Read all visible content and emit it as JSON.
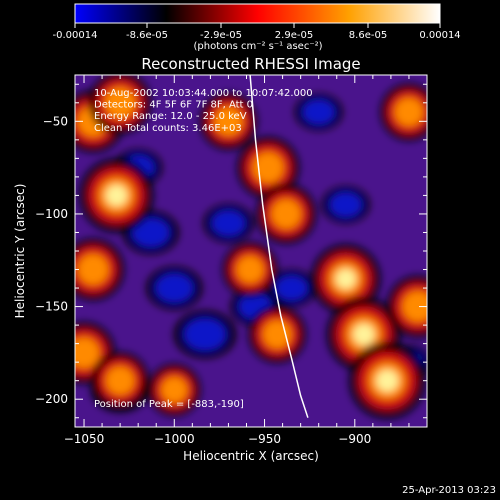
{
  "colorbar": {
    "tick_labels": [
      "-0.00014",
      "-8.6e-05",
      "-2.9e-05",
      "2.9e-05",
      "8.6e-05",
      "0.00014"
    ],
    "units_label": "(photons cm⁻² s⁻¹ asec⁻²)",
    "colors": [
      "#0000ff",
      "#000000",
      "#ff0000",
      "#ffa000",
      "#ffffff"
    ]
  },
  "chart_data": {
    "type": "heatmap",
    "title": "Reconstructed RHESSI Image",
    "xlabel": "Heliocentric X (arcsec)",
    "ylabel": "Heliocentric Y (arcsec)",
    "xlim": [
      -1055,
      -860
    ],
    "ylim": [
      -215,
      -25
    ],
    "x_ticks": [
      -1050,
      -1000,
      -950,
      -900
    ],
    "x_tick_labels": [
      "−1050",
      "−1000",
      "−950",
      "−900"
    ],
    "y_ticks": [
      -200,
      -150,
      -100,
      -50
    ],
    "y_tick_labels": [
      "−200",
      "−150",
      "−100",
      "−50"
    ],
    "colorbar_range": [
      -0.00014,
      0.00014
    ],
    "annotations": [
      "10-Aug-2002 10:03:44.000 to 10:07:42.000",
      "Detectors: 4F 5F 6F 7F 8F, Att 0",
      "Energy Range: 12.0 - 25.0 keV",
      "Clean     Total counts: 3.46E+03"
    ],
    "peak_label": "Position of Peak = [-883,-190]",
    "peak_position": [
      -883,
      -190
    ],
    "limb_curve": {
      "x": [
        -958,
        -955,
        -951,
        -946,
        -941,
        -935,
        -930,
        -926
      ],
      "y": [
        -25,
        -60,
        -95,
        -130,
        -155,
        -178,
        -198,
        -210
      ]
    },
    "hot_sources": [
      {
        "x": [
          -1045,
          -1030
        ],
        "y": [
          -50,
          -40
        ],
        "strength": 0.7
      },
      {
        "x": -1032,
        "y": -90,
        "strength": 0.95
      },
      {
        "x": -1045,
        "y": -130,
        "strength": 0.7
      },
      {
        "x": -1050,
        "y": -175,
        "strength": 0.7
      },
      {
        "x": -1030,
        "y": -190,
        "strength": 0.6
      },
      {
        "x": -970,
        "y": -50,
        "strength": 0.6
      },
      {
        "x": -948,
        "y": -75,
        "strength": 0.7
      },
      {
        "x": -938,
        "y": -100,
        "strength": 0.65
      },
      {
        "x": -958,
        "y": -130,
        "strength": 0.55
      },
      {
        "x": -943,
        "y": -165,
        "strength": 0.6
      },
      {
        "x": -905,
        "y": -135,
        "strength": 0.85
      },
      {
        "x": -895,
        "y": -165,
        "strength": 0.95
      },
      {
        "x": -882,
        "y": -190,
        "strength": 1.0
      },
      {
        "x": -865,
        "y": -150,
        "strength": 0.7
      },
      {
        "x": -870,
        "y": -45,
        "strength": 0.6
      },
      {
        "x": -1000,
        "y": -195,
        "strength": 0.5
      }
    ],
    "cold_sources": [
      {
        "x": -1013,
        "y": -110,
        "strength": 0.75
      },
      {
        "x": -1000,
        "y": -140,
        "strength": 0.75
      },
      {
        "x": -983,
        "y": -165,
        "strength": 0.9
      },
      {
        "x": -1030,
        "y": -195,
        "strength": 0.8
      },
      {
        "x": -1020,
        "y": -75,
        "strength": 0.55
      },
      {
        "x": -970,
        "y": -105,
        "strength": 0.6
      },
      {
        "x": -955,
        "y": -150,
        "strength": 0.6
      },
      {
        "x": -920,
        "y": -45,
        "strength": 0.55
      },
      {
        "x": -905,
        "y": -95,
        "strength": 0.55
      },
      {
        "x": -935,
        "y": -140,
        "strength": 0.55
      },
      {
        "x": -870,
        "y": -180,
        "strength": 0.45
      }
    ]
  },
  "footer": {
    "timestamp": "25-Apr-2013 03:23"
  }
}
